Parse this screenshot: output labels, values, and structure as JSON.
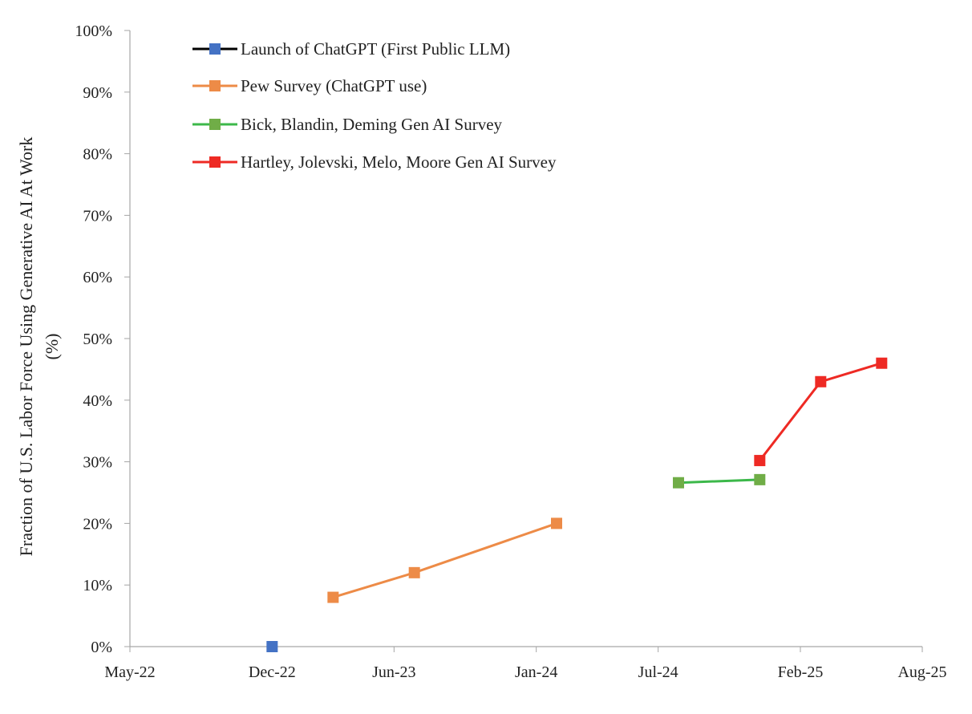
{
  "chart_data": {
    "type": "line",
    "ylabel_line1": "Fraction of U.S. Labor Force Using Generative AI At Work",
    "ylabel_line2": "(%)",
    "ylim": [
      0,
      100
    ],
    "y_ticks": [
      0,
      10,
      20,
      30,
      40,
      50,
      60,
      70,
      80,
      90,
      100
    ],
    "y_tick_labels": [
      "0%",
      "10%",
      "20%",
      "30%",
      "40%",
      "50%",
      "60%",
      "70%",
      "80%",
      "90%",
      "100%"
    ],
    "x_range": [
      "2022-05",
      "2025-08"
    ],
    "x_ticks": [
      "2022-05",
      "2022-12",
      "2023-06",
      "2024-01",
      "2024-07",
      "2025-02",
      "2025-08"
    ],
    "x_tick_labels": [
      "May-22",
      "Dec-22",
      "Jun-23",
      "Jan-24",
      "Jul-24",
      "Feb-25",
      "Aug-25"
    ],
    "grid": false,
    "legend_position": "top-left",
    "series": [
      {
        "name": "Launch of ChatGPT (First Public LLM)",
        "color": "#4472c4",
        "line_color": "#000000",
        "points": [
          {
            "x": "2022-12",
            "y": 0
          }
        ]
      },
      {
        "name": "Pew Survey (ChatGPT use)",
        "color": "#ed8b47",
        "line_color": "#ed8b47",
        "points": [
          {
            "x": "2023-03",
            "y": 8
          },
          {
            "x": "2023-07",
            "y": 12
          },
          {
            "x": "2024-02",
            "y": 20
          }
        ]
      },
      {
        "name": "Bick, Blandin, Deming Gen AI Survey",
        "color": "#70ad47",
        "line_color": "#3cb84a",
        "points": [
          {
            "x": "2024-08",
            "y": 26.6
          },
          {
            "x": "2024-12",
            "y": 27.1
          }
        ]
      },
      {
        "name": "Hartley, Jolevski, Melo, Moore Gen AI Survey",
        "color": "#ee2a24",
        "line_color": "#ee2a24",
        "points": [
          {
            "x": "2024-12",
            "y": 30.2
          },
          {
            "x": "2025-03",
            "y": 43
          },
          {
            "x": "2025-06",
            "y": 46
          }
        ]
      }
    ]
  }
}
